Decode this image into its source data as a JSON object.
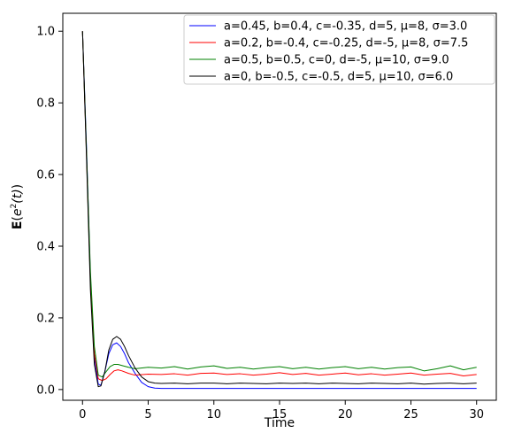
{
  "chart_data": {
    "type": "line",
    "title": "",
    "xlabel": "Time",
    "ylabel_main": "E",
    "ylabel_paren_open": "(",
    "ylabel_e": "e",
    "ylabel_exp": "2",
    "ylabel_t": "(t)",
    "ylabel_paren_close": ")",
    "xlim": [
      -1.5,
      31.5
    ],
    "ylim": [
      -0.03,
      1.05
    ],
    "xticks": [
      0,
      5,
      10,
      15,
      20,
      25,
      30
    ],
    "yticks": [
      0.0,
      0.2,
      0.4,
      0.6,
      0.8,
      1.0
    ],
    "xtick_labels": [
      "0",
      "5",
      "10",
      "15",
      "20",
      "25",
      "30"
    ],
    "ytick_labels": [
      "0.0",
      "0.2",
      "0.4",
      "0.6",
      "0.8",
      "1.0"
    ],
    "grid": false,
    "legend_position": "top-right",
    "series": [
      {
        "name": "a=0.45, b=0.4, c=-0.35, d=5, μ=8, σ=3.0",
        "color": "#0000ff",
        "x": [
          0,
          0.3,
          0.6,
          0.9,
          1.2,
          1.4,
          1.7,
          2.0,
          2.3,
          2.6,
          2.9,
          3.2,
          3.5,
          4.0,
          4.5,
          5.0,
          5.5,
          6.0,
          7.0,
          8.0,
          10.0,
          12.0,
          15.0,
          18.0,
          20.0,
          22.0,
          25.0,
          28.0,
          30.0
        ],
        "y": [
          1.0,
          0.68,
          0.31,
          0.09,
          0.015,
          0.012,
          0.05,
          0.1,
          0.125,
          0.13,
          0.12,
          0.1,
          0.075,
          0.045,
          0.02,
          0.008,
          0.004,
          0.003,
          0.003,
          0.003,
          0.003,
          0.003,
          0.003,
          0.003,
          0.003,
          0.003,
          0.003,
          0.003,
          0.003
        ]
      },
      {
        "name": "a=0.2, b=-0.4, c=-0.25, d=-5, μ=8, σ=7.5",
        "color": "#ff0000",
        "x": [
          0,
          0.3,
          0.6,
          0.9,
          1.2,
          1.5,
          1.8,
          2.1,
          2.4,
          2.7,
          3.0,
          3.5,
          4.0,
          5.0,
          6.0,
          7.0,
          8.0,
          9.0,
          10.0,
          11.0,
          12.0,
          13.0,
          14.0,
          15.0,
          16.0,
          17.0,
          18.0,
          19.0,
          20.0,
          21.0,
          22.0,
          23.0,
          24.0,
          25.0,
          26.0,
          27.0,
          28.0,
          29.0,
          30.0
        ],
        "y": [
          1.0,
          0.66,
          0.3,
          0.1,
          0.03,
          0.025,
          0.03,
          0.042,
          0.052,
          0.055,
          0.052,
          0.045,
          0.04,
          0.043,
          0.042,
          0.044,
          0.04,
          0.045,
          0.046,
          0.042,
          0.044,
          0.04,
          0.043,
          0.047,
          0.042,
          0.045,
          0.04,
          0.043,
          0.046,
          0.041,
          0.044,
          0.04,
          0.043,
          0.046,
          0.04,
          0.043,
          0.045,
          0.038,
          0.042
        ]
      },
      {
        "name": "a=0.5, b=0.5, c=0, d=-5, μ=10, σ=9.0",
        "color": "#008000",
        "x": [
          0,
          0.3,
          0.6,
          0.9,
          1.2,
          1.5,
          1.8,
          2.1,
          2.4,
          2.7,
          3.0,
          3.5,
          4.0,
          5.0,
          6.0,
          7.0,
          8.0,
          9.0,
          10.0,
          11.0,
          12.0,
          13.0,
          14.0,
          15.0,
          16.0,
          17.0,
          18.0,
          19.0,
          20.0,
          21.0,
          22.0,
          23.0,
          24.0,
          25.0,
          26.0,
          27.0,
          28.0,
          29.0,
          30.0
        ],
        "y": [
          1.0,
          0.67,
          0.33,
          0.12,
          0.04,
          0.035,
          0.05,
          0.064,
          0.07,
          0.07,
          0.067,
          0.062,
          0.058,
          0.062,
          0.06,
          0.064,
          0.057,
          0.063,
          0.066,
          0.059,
          0.062,
          0.057,
          0.061,
          0.064,
          0.058,
          0.062,
          0.057,
          0.061,
          0.064,
          0.058,
          0.062,
          0.057,
          0.061,
          0.063,
          0.052,
          0.058,
          0.066,
          0.055,
          0.062
        ]
      },
      {
        "name": "a=0, b=-0.5, c=-0.5, d=5, μ=10, σ=6.0",
        "color": "#000000",
        "x": [
          0,
          0.3,
          0.6,
          0.9,
          1.2,
          1.4,
          1.7,
          2.0,
          2.3,
          2.6,
          2.9,
          3.2,
          3.5,
          4.0,
          4.5,
          5.0,
          5.5,
          6.0,
          7.0,
          8.0,
          9.0,
          10.0,
          11.0,
          12.0,
          13.0,
          14.0,
          15.0,
          16.0,
          17.0,
          18.0,
          19.0,
          20.0,
          21.0,
          22.0,
          23.0,
          24.0,
          25.0,
          26.0,
          27.0,
          28.0,
          29.0,
          30.0
        ],
        "y": [
          1.0,
          0.65,
          0.28,
          0.07,
          0.008,
          0.01,
          0.05,
          0.11,
          0.14,
          0.148,
          0.14,
          0.12,
          0.095,
          0.06,
          0.035,
          0.022,
          0.018,
          0.017,
          0.018,
          0.016,
          0.018,
          0.018,
          0.016,
          0.018,
          0.017,
          0.016,
          0.018,
          0.017,
          0.018,
          0.016,
          0.018,
          0.017,
          0.016,
          0.018,
          0.017,
          0.016,
          0.018,
          0.015,
          0.017,
          0.018,
          0.016,
          0.018
        ]
      }
    ]
  }
}
